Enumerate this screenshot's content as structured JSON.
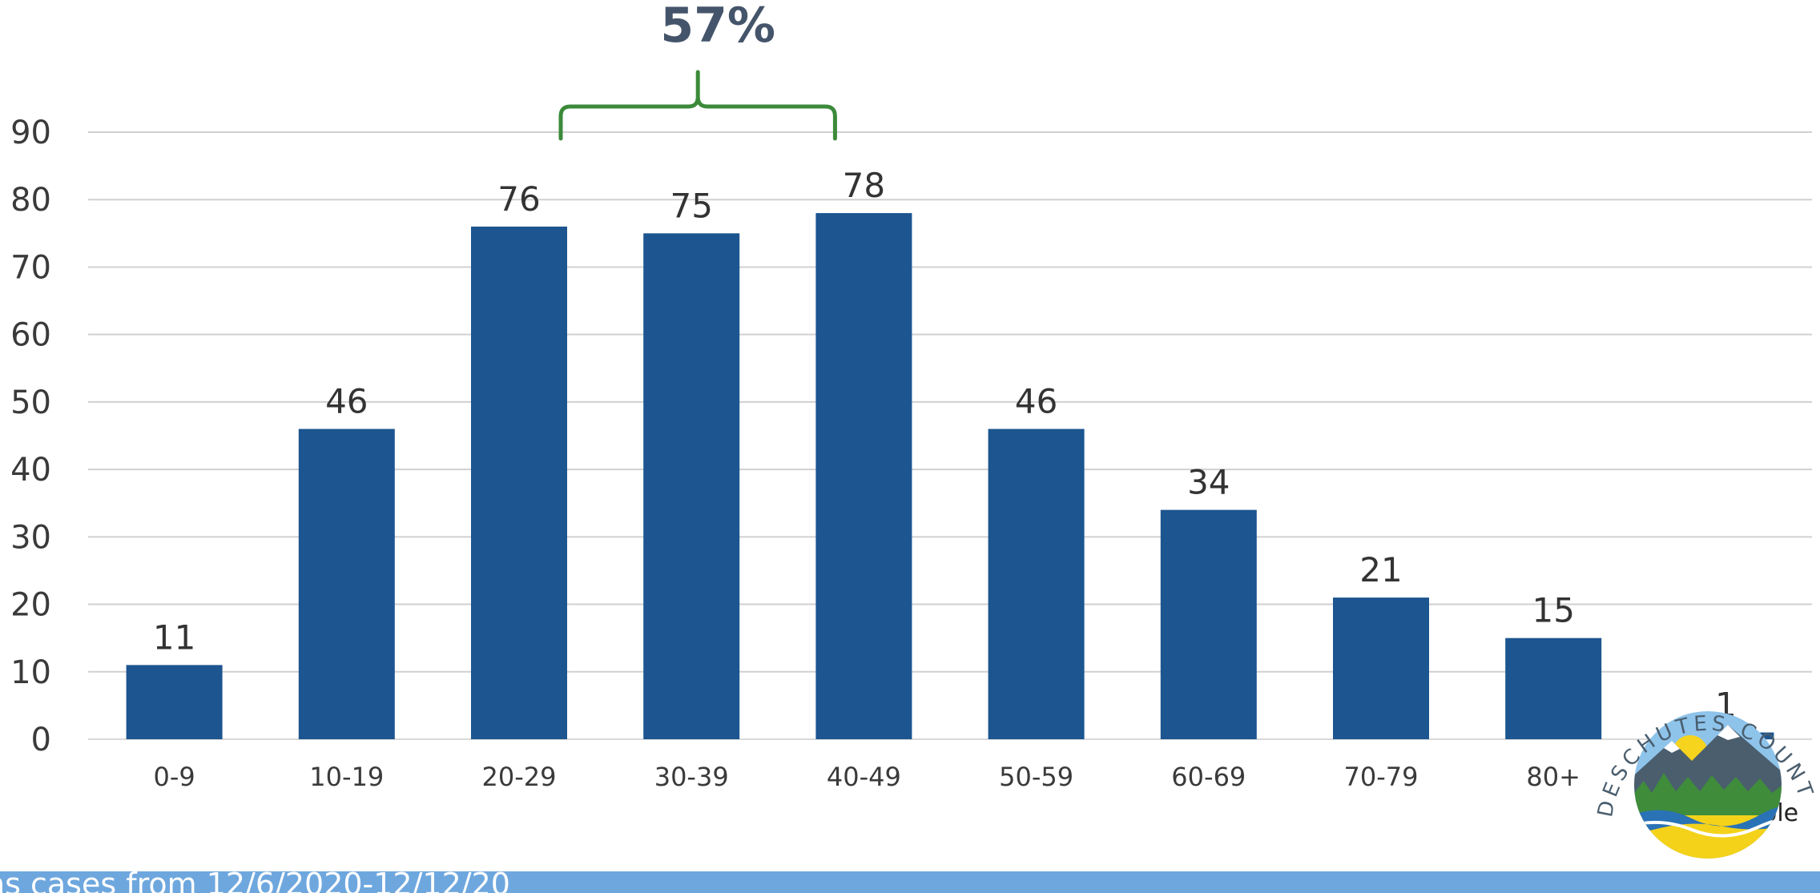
{
  "chart_data": {
    "type": "bar",
    "categories": [
      "0-9",
      "10-19",
      "20-29",
      "30-39",
      "40-49",
      "50-59",
      "60-69",
      "70-79",
      "80+",
      "Age data unavailable"
    ],
    "values": [
      11,
      46,
      76,
      75,
      78,
      46,
      34,
      21,
      15,
      1
    ],
    "ylim": [
      0,
      90
    ],
    "yticks": [
      0,
      10,
      20,
      30,
      40,
      50,
      60,
      70,
      80,
      90
    ],
    "grid": true,
    "bar_color": "#1c5590",
    "annotation": {
      "text": "57%",
      "spans_categories": [
        "20-29",
        "40-49"
      ],
      "bracket_color": "#3b8a3a"
    }
  },
  "footer": {
    "text": "ns cases from 12/6/2020-12/12/20",
    "color": "#6ea7de"
  },
  "logo": {
    "text": "DESCHUTES COUNTY"
  }
}
